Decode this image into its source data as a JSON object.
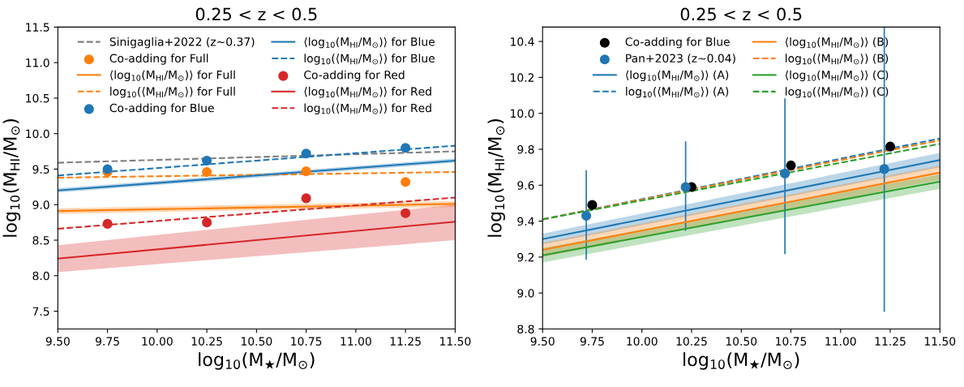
{
  "chart_data": [
    {
      "type": "line",
      "title": "0.25 < z < 0.5",
      "xlabel": "log$_{10}$(M$_{★}$/M$_{⊙}$)",
      "ylabel": "log$_{10}$(M$_{HI}$/M$_{⊙}$)",
      "xlim": [
        9.5,
        11.5
      ],
      "ylim": [
        7.25,
        11.5
      ],
      "xticks": [
        {
          "value": 9.5,
          "label": "9.50"
        },
        {
          "value": 9.75,
          "label": "9.75"
        },
        {
          "value": 10.0,
          "label": "10.00"
        },
        {
          "value": 10.25,
          "label": "10.25"
        },
        {
          "value": 10.5,
          "label": "10.50"
        },
        {
          "value": 10.75,
          "label": "10.75"
        },
        {
          "value": 11.0,
          "label": "11.00"
        },
        {
          "value": 11.25,
          "label": "11.25"
        },
        {
          "value": 11.5,
          "label": "11.50"
        }
      ],
      "yticks": [
        7.5,
        {
          "value": 8,
          "label": "8.0"
        },
        8.5,
        {
          "value": 9,
          "label": "9.0"
        },
        9.5,
        {
          "value": 10,
          "label": "10.0"
        },
        10.5,
        {
          "value": 11,
          "label": "11.0"
        },
        11.5
      ],
      "grid": false,
      "legend": "top",
      "series": [
        {
          "name": "Sinigaglia+2022 (z~0.37)",
          "type": "line",
          "line_style": "dashed",
          "color": "#7f7f7f",
          "x": [
            9.5,
            11.5
          ],
          "values": [
            9.59,
            9.75
          ]
        },
        {
          "name": "Co-adding for Full",
          "type": "scatter",
          "marker": "circle",
          "color": "#ff7f0e",
          "x": [
            9.75,
            10.25,
            10.75,
            11.25
          ],
          "values": [
            9.46,
            9.46,
            9.47,
            9.32
          ]
        },
        {
          "name": "⟨log$_{10}$(M$_{HI}$/M$_{⊙}$)⟩ for Full",
          "type": "line",
          "line_style": "solid",
          "color": "#ff7f0e",
          "x": [
            9.5,
            11.5
          ],
          "values": [
            8.91,
            9.01
          ],
          "lower": [
            8.87,
            8.97
          ],
          "upper": [
            8.95,
            9.05
          ]
        },
        {
          "name": "log$_{10}$(⟨M$_{HI}$/M$_{⊙}$⟩) for Full",
          "type": "line",
          "line_style": "dashed",
          "color": "#ff7f0e",
          "x": [
            9.5,
            11.5
          ],
          "values": [
            9.38,
            9.46
          ]
        },
        {
          "name": "Co-adding for Blue",
          "type": "scatter",
          "marker": "circle",
          "color": "#1f77b4",
          "x": [
            9.75,
            10.25,
            10.75,
            11.25
          ],
          "values": [
            9.5,
            9.62,
            9.72,
            9.8
          ]
        },
        {
          "name": "⟨log$_{10}$(M$_{HI}$/M$_{⊙}$)⟩ for Blue",
          "type": "line",
          "line_style": "solid",
          "color": "#1f77b4",
          "x": [
            9.5,
            11.5
          ],
          "values": [
            9.2,
            9.62
          ],
          "lower": [
            9.17,
            9.59
          ],
          "upper": [
            9.23,
            9.65
          ]
        },
        {
          "name": "log$_{10}$(⟨M$_{HI}$/M$_{⊙}$⟩) for Blue",
          "type": "line",
          "line_style": "dashed",
          "color": "#1f77b4",
          "x": [
            9.5,
            11.5
          ],
          "values": [
            9.41,
            9.83
          ]
        },
        {
          "name": "Co-adding for Red",
          "type": "scatter",
          "marker": "circle",
          "color": "#d62728",
          "x": [
            9.75,
            10.25,
            10.75,
            11.25
          ],
          "values": [
            8.73,
            8.75,
            9.09,
            8.88
          ]
        },
        {
          "name": "⟨log$_{10}$(M$_{HI}$/M$_{⊙}$)⟩ for Red",
          "type": "line",
          "line_style": "solid",
          "color": "#d62728",
          "x": [
            9.5,
            11.5
          ],
          "values": [
            8.24,
            8.76
          ],
          "lower": [
            8.05,
            8.5
          ],
          "upper": [
            8.43,
            9.0
          ]
        },
        {
          "name": "log$_{10}$(⟨M$_{HI}$/M$_{⊙}$⟩) for Red",
          "type": "line",
          "line_style": "dashed",
          "color": "#d62728",
          "x": [
            9.5,
            11.5
          ],
          "values": [
            8.66,
            9.1
          ]
        }
      ]
    },
    {
      "type": "line",
      "title": "0.25 < z < 0.5",
      "xlabel": "log$_{10}$(M$_{★}$/M$_{⊙}$)",
      "ylabel": "log$_{10}$(M$_{HI}$/M$_{⊙}$)",
      "xlim": [
        9.5,
        11.5
      ],
      "ylim": [
        8.8,
        10.48
      ],
      "xticks": [
        {
          "value": 9.5,
          "label": "9.50"
        },
        {
          "value": 9.75,
          "label": "9.75"
        },
        {
          "value": 10.0,
          "label": "10.00"
        },
        {
          "value": 10.25,
          "label": "10.25"
        },
        {
          "value": 10.5,
          "label": "10.50"
        },
        {
          "value": 10.75,
          "label": "10.75"
        },
        {
          "value": 11.0,
          "label": "11.00"
        },
        {
          "value": 11.25,
          "label": "11.25"
        },
        {
          "value": 11.5,
          "label": "11.50"
        }
      ],
      "yticks": [
        8.8,
        {
          "value": 9,
          "label": "9.0"
        },
        9.2,
        9.4,
        9.6,
        9.8,
        {
          "value": 10,
          "label": "10.0"
        },
        10.2,
        10.4
      ],
      "grid": false,
      "legend": "top",
      "series": [
        {
          "name": "Co-adding for Blue",
          "type": "scatter",
          "marker": "circle",
          "color": "#000000",
          "x": [
            9.75,
            10.25,
            10.75,
            11.25
          ],
          "values": [
            9.49,
            9.59,
            9.71,
            9.815
          ],
          "errors": [
            null,
            null,
            null,
            0.02
          ]
        },
        {
          "name": "Pan+2023 (z~0.04)",
          "type": "scatter",
          "marker": "circle",
          "color": "#1f77b4",
          "x": [
            9.72,
            10.22,
            10.72,
            11.22
          ],
          "values": [
            9.43,
            9.59,
            9.665,
            9.69
          ],
          "errors": [
            [
              9.19,
              9.68
            ],
            [
              9.35,
              9.84
            ],
            [
              9.22,
              10.08
            ],
            [
              8.9,
              10.48
            ]
          ]
        },
        {
          "name": "⟨log$_{10}$(M$_{HI}$/M$_{⊙}$)⟩ (A)",
          "type": "line",
          "line_style": "solid",
          "color": "#1f77b4",
          "x": [
            9.5,
            11.5
          ],
          "values": [
            9.3,
            9.74
          ],
          "lower": [
            9.27,
            9.7
          ],
          "upper": [
            9.33,
            9.78
          ]
        },
        {
          "name": "log$_{10}$(⟨M$_{HI}$/M$_{⊙}$⟩) (A)",
          "type": "line",
          "line_style": "dashed",
          "color": "#1f77b4",
          "x": [
            9.5,
            11.5
          ],
          "values": [
            9.41,
            9.86
          ]
        },
        {
          "name": "⟨log$_{10}$(M$_{HI}$/M$_{⊙}$)⟩ (B)",
          "type": "line",
          "line_style": "solid",
          "color": "#ff7f0e",
          "x": [
            9.5,
            11.5
          ],
          "values": [
            9.24,
            9.67
          ],
          "lower": [
            9.2,
            9.63
          ],
          "upper": [
            9.28,
            9.71
          ]
        },
        {
          "name": "log$_{10}$(⟨M$_{HI}$/M$_{⊙}$⟩) (B)",
          "type": "line",
          "line_style": "dashed",
          "color": "#ff7f0e",
          "x": [
            9.5,
            11.5
          ],
          "values": [
            9.41,
            9.85
          ]
        },
        {
          "name": "⟨log$_{10}$(M$_{HI}$/M$_{⊙}$)⟩ (C)",
          "type": "line",
          "line_style": "solid",
          "color": "#2ca02c",
          "x": [
            9.5,
            11.5
          ],
          "values": [
            9.21,
            9.62
          ],
          "lower": [
            9.17,
            9.58
          ],
          "upper": [
            9.25,
            9.66
          ]
        },
        {
          "name": "log$_{10}$(⟨M$_{HI}$/M$_{⊙}$⟩) (C)",
          "type": "line",
          "line_style": "dashed",
          "color": "#2ca02c",
          "x": [
            9.5,
            11.5
          ],
          "values": [
            9.41,
            9.83
          ]
        }
      ]
    }
  ]
}
